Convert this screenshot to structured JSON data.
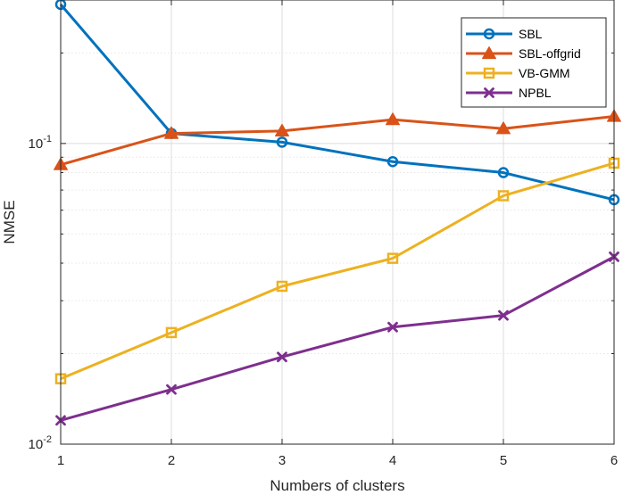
{
  "chart_data": {
    "type": "line",
    "title": "",
    "xlabel": "Numbers of clusters",
    "ylabel": "NMSE",
    "yscale": "log",
    "ylim": [
      0.01,
      0.3
    ],
    "xlim": [
      1,
      6
    ],
    "grid": true,
    "legend_position": "top-right",
    "x": [
      1,
      2,
      3,
      4,
      5,
      6
    ],
    "x_tick_labels": [
      "1",
      "2",
      "3",
      "4",
      "5",
      "6"
    ],
    "y_tick_labels": [
      {
        "value": 0.01,
        "base": "10",
        "exp": "-2"
      },
      {
        "value": 0.1,
        "base": "10",
        "exp": "-1"
      }
    ],
    "series": [
      {
        "name": "SBL",
        "color": "#0072BD",
        "marker": "circle",
        "values": [
          0.29,
          0.108,
          0.101,
          0.087,
          0.08,
          0.065
        ]
      },
      {
        "name": "SBL-offgrid",
        "color": "#D95319",
        "marker": "triangle",
        "values": [
          0.085,
          0.108,
          0.11,
          0.12,
          0.112,
          0.123
        ]
      },
      {
        "name": "VB-GMM",
        "color": "#EDB120",
        "marker": "square",
        "values": [
          0.0165,
          0.0235,
          0.0335,
          0.0415,
          0.067,
          0.086
        ]
      },
      {
        "name": "NPBL",
        "color": "#7E2F8E",
        "marker": "x",
        "values": [
          0.012,
          0.0152,
          0.0195,
          0.0245,
          0.0268,
          0.042
        ]
      }
    ]
  }
}
